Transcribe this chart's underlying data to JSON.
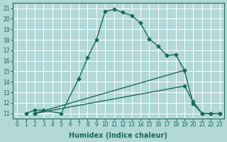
{
  "background_color": "#b2d8d8",
  "grid_color": "#ffffff",
  "line_color": "#1a6b5a",
  "marker": "D",
  "marker_size": 2.5,
  "line_width": 1.0,
  "xlabel": "Humidex (Indice chaleur)",
  "xlim": [
    -0.5,
    23.5
  ],
  "ylim": [
    10.5,
    21.5
  ],
  "xticks": [
    0,
    1,
    2,
    3,
    4,
    5,
    6,
    7,
    8,
    9,
    10,
    11,
    12,
    13,
    14,
    15,
    16,
    17,
    18,
    19,
    20,
    21,
    22,
    23
  ],
  "yticks": [
    11,
    12,
    13,
    14,
    15,
    16,
    17,
    18,
    19,
    20,
    21
  ],
  "line1_x": [
    1,
    2,
    3,
    5,
    7,
    8,
    9,
    10,
    11,
    12,
    13,
    14,
    15,
    16,
    17,
    18,
    19,
    20,
    21,
    22,
    23
  ],
  "line1_y": [
    11,
    11.3,
    11.3,
    11.0,
    14.3,
    16.3,
    18.0,
    20.7,
    20.9,
    20.6,
    20.3,
    19.6,
    18.1,
    17.4,
    16.5,
    16.6,
    15.1,
    11.9,
    11.0,
    11.0,
    11.0
  ],
  "line2_x": [
    2,
    19
  ],
  "line2_y": [
    11,
    15.1
  ],
  "line3_x": [
    2,
    19,
    20,
    21,
    22,
    23
  ],
  "line3_y": [
    11,
    13.6,
    12.1,
    11.0,
    11.0,
    11.0
  ]
}
